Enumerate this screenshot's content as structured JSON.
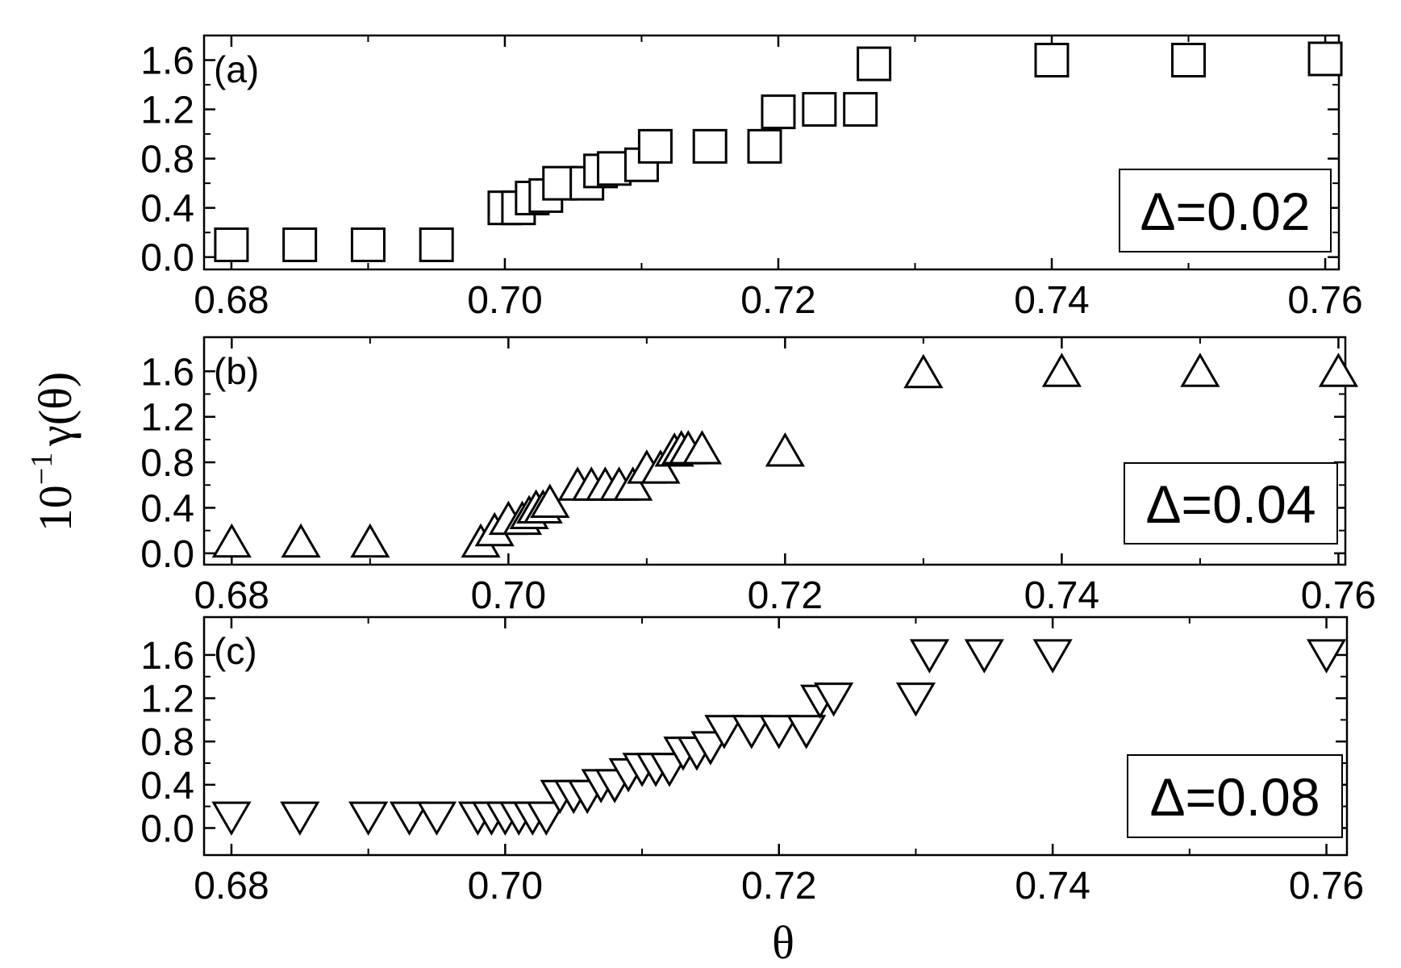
{
  "figure": {
    "ylabel": "10",
    "ylabel_exponent": "−1",
    "ylabel_symbol": "γ(θ)",
    "xlabel": "θ"
  },
  "chart_data": [
    {
      "type": "scatter",
      "panel_label": "(a)",
      "annotation": "Δ=0.02",
      "marker": "square",
      "xlim": [
        0.678,
        0.761
      ],
      "ylim": [
        -0.1,
        1.8
      ],
      "xticks": [
        0.68,
        0.7,
        0.72,
        0.74,
        0.76
      ],
      "xtick_labels": [
        "0.68",
        "0.70",
        "0.72",
        "0.74",
        "0.76"
      ],
      "yticks": [
        0.0,
        0.4,
        0.8,
        1.2,
        1.6
      ],
      "ytick_labels": [
        "0.0",
        "0.4",
        "0.8",
        "1.2",
        "1.6"
      ],
      "points": [
        [
          0.68,
          0.1
        ],
        [
          0.685,
          0.1
        ],
        [
          0.69,
          0.1
        ],
        [
          0.695,
          0.1
        ],
        [
          0.7,
          0.4
        ],
        [
          0.701,
          0.4
        ],
        [
          0.702,
          0.48
        ],
        [
          0.703,
          0.5
        ],
        [
          0.704,
          0.6
        ],
        [
          0.706,
          0.6
        ],
        [
          0.707,
          0.7
        ],
        [
          0.708,
          0.72
        ],
        [
          0.71,
          0.75
        ],
        [
          0.711,
          0.9
        ],
        [
          0.715,
          0.9
        ],
        [
          0.719,
          0.9
        ],
        [
          0.72,
          1.18
        ],
        [
          0.723,
          1.2
        ],
        [
          0.726,
          1.2
        ],
        [
          0.727,
          1.57
        ],
        [
          0.74,
          1.6
        ],
        [
          0.75,
          1.6
        ],
        [
          0.76,
          1.61
        ]
      ]
    },
    {
      "type": "scatter",
      "panel_label": "(b)",
      "annotation": "Δ=0.04",
      "marker": "triangle-up",
      "xlim": [
        0.678,
        0.7605
      ],
      "ylim": [
        -0.1,
        1.9
      ],
      "xticks": [
        0.68,
        0.7,
        0.72,
        0.74,
        0.76
      ],
      "xtick_labels": [
        "0.68",
        "0.70",
        "0.72",
        "0.74",
        "0.76"
      ],
      "yticks": [
        0.0,
        0.4,
        0.8,
        1.2,
        1.6
      ],
      "ytick_labels": [
        "0.0",
        "0.4",
        "0.8",
        "1.2",
        "1.6"
      ],
      "points": [
        [
          0.68,
          0.1
        ],
        [
          0.685,
          0.1
        ],
        [
          0.69,
          0.1
        ],
        [
          0.698,
          0.1
        ],
        [
          0.699,
          0.2
        ],
        [
          0.7,
          0.3
        ],
        [
          0.701,
          0.3
        ],
        [
          0.7015,
          0.35
        ],
        [
          0.702,
          0.4
        ],
        [
          0.7025,
          0.4
        ],
        [
          0.703,
          0.45
        ],
        [
          0.705,
          0.6
        ],
        [
          0.706,
          0.6
        ],
        [
          0.707,
          0.6
        ],
        [
          0.708,
          0.6
        ],
        [
          0.709,
          0.6
        ],
        [
          0.71,
          0.75
        ],
        [
          0.711,
          0.75
        ],
        [
          0.712,
          0.9
        ],
        [
          0.7125,
          0.92
        ],
        [
          0.713,
          0.92
        ],
        [
          0.714,
          0.92
        ],
        [
          0.72,
          0.9
        ],
        [
          0.73,
          1.59
        ],
        [
          0.74,
          1.6
        ],
        [
          0.75,
          1.6
        ],
        [
          0.76,
          1.6
        ]
      ]
    },
    {
      "type": "scatter",
      "panel_label": "(c)",
      "annotation": "Δ=0.08",
      "marker": "triangle-down",
      "xlim": [
        0.678,
        0.7615
      ],
      "ylim": [
        -0.25,
        1.95
      ],
      "xticks": [
        0.68,
        0.7,
        0.72,
        0.74,
        0.76
      ],
      "xtick_labels": [
        "0.68",
        "0.70",
        "0.72",
        "0.74",
        "0.76"
      ],
      "yticks": [
        0.0,
        0.4,
        0.8,
        1.2,
        1.6
      ],
      "ytick_labels": [
        "0.0",
        "0.4",
        "0.8",
        "1.2",
        "1.6"
      ],
      "points": [
        [
          0.68,
          0.1
        ],
        [
          0.685,
          0.1
        ],
        [
          0.69,
          0.1
        ],
        [
          0.693,
          0.1
        ],
        [
          0.695,
          0.1
        ],
        [
          0.698,
          0.1
        ],
        [
          0.699,
          0.1
        ],
        [
          0.7,
          0.1
        ],
        [
          0.701,
          0.1
        ],
        [
          0.702,
          0.1
        ],
        [
          0.703,
          0.1
        ],
        [
          0.704,
          0.3
        ],
        [
          0.705,
          0.3
        ],
        [
          0.706,
          0.3
        ],
        [
          0.707,
          0.4
        ],
        [
          0.708,
          0.4
        ],
        [
          0.709,
          0.5
        ],
        [
          0.71,
          0.55
        ],
        [
          0.711,
          0.55
        ],
        [
          0.712,
          0.55
        ],
        [
          0.713,
          0.7
        ],
        [
          0.714,
          0.7
        ],
        [
          0.715,
          0.75
        ],
        [
          0.716,
          0.9
        ],
        [
          0.718,
          0.9
        ],
        [
          0.72,
          0.9
        ],
        [
          0.722,
          0.9
        ],
        [
          0.723,
          1.18
        ],
        [
          0.724,
          1.2
        ],
        [
          0.73,
          1.2
        ],
        [
          0.731,
          1.6
        ],
        [
          0.735,
          1.6
        ],
        [
          0.74,
          1.6
        ],
        [
          0.76,
          1.6
        ]
      ]
    }
  ]
}
